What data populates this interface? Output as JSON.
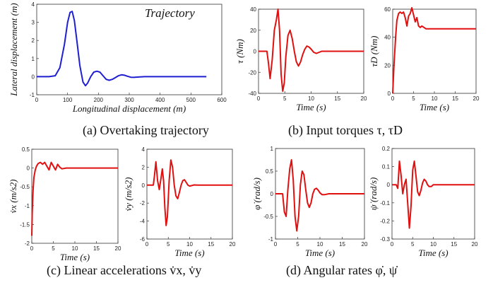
{
  "captions": {
    "a": "(a) Overtaking trajectory",
    "b": "(b) Input torques τ, τD",
    "c": "(c) Linear accelerations v̇x, v̇y",
    "d": "(d) Angular rates φ̇, ψ̇"
  },
  "chart_data": [
    {
      "id": "trajectory",
      "type": "line",
      "title": "Trajectory",
      "xlabel": "Longitudinal displacement (m)",
      "ylabel": "Lateral displacement (m)",
      "xlim": [
        0,
        600
      ],
      "ylim": [
        -1,
        4
      ],
      "xticks": [
        0,
        100,
        200,
        300,
        400,
        500,
        600
      ],
      "yticks": [
        -1,
        0,
        1,
        2,
        3,
        4
      ],
      "color": "#1f1fd1",
      "series": [
        {
          "x": [
            0,
            40,
            60,
            75,
            90,
            100,
            108,
            115,
            122,
            130,
            140,
            150,
            158,
            165,
            175,
            185,
            195,
            205,
            215,
            225,
            235,
            245,
            255,
            265,
            275,
            285,
            295,
            305,
            315,
            330,
            350,
            370,
            400,
            450,
            500,
            550
          ],
          "y": [
            0,
            0,
            0.05,
            0.5,
            1.8,
            3.0,
            3.55,
            3.6,
            3.1,
            2.0,
            0.6,
            -0.3,
            -0.5,
            -0.35,
            0,
            0.25,
            0.3,
            0.25,
            0.05,
            -0.15,
            -0.2,
            -0.15,
            -0.05,
            0.05,
            0.1,
            0.08,
            0.02,
            -0.03,
            -0.04,
            -0.02,
            0,
            0,
            0,
            0,
            0,
            0
          ]
        }
      ]
    },
    {
      "id": "tau",
      "type": "line",
      "xlabel": "Time (s)",
      "ylabel": "τ (Nm)",
      "xlim": [
        0,
        20
      ],
      "ylim": [
        -40,
        40
      ],
      "xticks": [
        0,
        5,
        10,
        15,
        20
      ],
      "yticks": [
        -40,
        -20,
        0,
        20,
        40
      ],
      "color": "#e01010",
      "series": [
        {
          "x": [
            0,
            1.0,
            1.6,
            1.9,
            2.2,
            2.6,
            3.0,
            3.4,
            3.7,
            4.0,
            4.3,
            4.6,
            4.9,
            5.2,
            5.6,
            6.0,
            6.4,
            6.8,
            7.2,
            7.6,
            8.0,
            8.4,
            8.8,
            9.2,
            9.6,
            10.0,
            10.5,
            11.0,
            11.5,
            12.0,
            13.0,
            14.0,
            16.0,
            18.0,
            20.0
          ],
          "y": [
            0,
            0,
            0,
            -12,
            -26,
            -8,
            20,
            30,
            40,
            20,
            -22,
            -38,
            -30,
            -5,
            15,
            20,
            12,
            0,
            -10,
            -14,
            -10,
            -3,
            2,
            5,
            4,
            2,
            -1,
            -2,
            -1,
            0,
            0,
            0,
            0,
            0,
            0
          ]
        }
      ]
    },
    {
      "id": "tauD",
      "type": "line",
      "xlabel": "Time (s)",
      "ylabel": "τD (Nm)",
      "xlim": [
        0,
        20
      ],
      "ylim": [
        0,
        60
      ],
      "xticks": [
        0,
        5,
        10,
        15,
        20
      ],
      "yticks": [
        0,
        20,
        40,
        60
      ],
      "color": "#e01010",
      "series": [
        {
          "x": [
            0,
            0.3,
            0.7,
            1.0,
            1.4,
            1.8,
            2.2,
            2.6,
            3.0,
            3.4,
            3.8,
            4.2,
            4.6,
            5.0,
            5.4,
            5.8,
            6.2,
            6.6,
            7.0,
            7.5,
            8.0,
            9.0,
            10.0,
            12.0,
            15.0,
            20.0
          ],
          "y": [
            0,
            20,
            40,
            52,
            57,
            58,
            57,
            58,
            54,
            48,
            55,
            57,
            61,
            56,
            51,
            54,
            48,
            47,
            48,
            47,
            46,
            46,
            46,
            46,
            46,
            46
          ]
        }
      ]
    },
    {
      "id": "vxdot",
      "type": "line",
      "xlabel": "Time (s)",
      "ylabel": "v̇x (m/s2)",
      "xlim": [
        0,
        20
      ],
      "ylim": [
        -2,
        0.5
      ],
      "xticks": [
        0,
        5,
        10,
        15,
        20
      ],
      "yticks": [
        -2,
        -1.5,
        -1,
        -0.5,
        0,
        0.5
      ],
      "color": "#e01010",
      "series": [
        {
          "x": [
            0,
            0.1,
            0.3,
            0.5,
            0.8,
            1.1,
            1.5,
            2.0,
            2.5,
            3.0,
            3.5,
            4.0,
            4.5,
            5.0,
            5.5,
            6.0,
            6.5,
            7.0,
            8.0,
            9.0,
            10.0,
            12.0,
            15.0,
            20.0
          ],
          "y": [
            -1.8,
            -1.2,
            -0.6,
            -0.25,
            -0.05,
            0.05,
            0.12,
            0.15,
            0.1,
            0.15,
            0.05,
            -0.05,
            0.15,
            0.05,
            -0.05,
            0.1,
            0.02,
            -0.02,
            0,
            0,
            0,
            0,
            0,
            0
          ]
        }
      ]
    },
    {
      "id": "vydot",
      "type": "line",
      "xlabel": "Time (s)",
      "ylabel": "v̇y (m/s2)",
      "xlim": [
        0,
        20
      ],
      "ylim": [
        -6,
        4
      ],
      "xticks": [
        0,
        5,
        10,
        15,
        20
      ],
      "yticks": [
        -6,
        -4,
        -2,
        0,
        2,
        4
      ],
      "color": "#e01010",
      "series": [
        {
          "x": [
            0,
            1.0,
            1.5,
            1.8,
            2.1,
            2.5,
            2.9,
            3.3,
            3.6,
            3.9,
            4.2,
            4.5,
            4.8,
            5.2,
            5.6,
            6.0,
            6.4,
            6.8,
            7.2,
            7.6,
            8.0,
            8.4,
            8.8,
            9.2,
            9.6,
            10.0,
            10.5,
            11.0,
            12.0,
            14.0,
            17.0,
            20.0
          ],
          "y": [
            0,
            0,
            0,
            1.2,
            2.6,
            0.5,
            -0.5,
            0.8,
            1.8,
            0.5,
            -2.5,
            -4.5,
            -3.5,
            0.5,
            2.8,
            2.0,
            0,
            -1.2,
            -1.5,
            -0.8,
            0,
            0.5,
            0.6,
            0.3,
            0,
            -0.1,
            -0.05,
            0.02,
            0,
            0,
            0,
            0
          ]
        }
      ]
    },
    {
      "id": "phidot",
      "type": "line",
      "xlabel": "Time (s)",
      "ylabel": "φ̇ (rad/s)",
      "xlim": [
        0,
        20
      ],
      "ylim": [
        -1,
        1
      ],
      "xticks": [
        0,
        5,
        10,
        15,
        20
      ],
      "yticks": [
        -1,
        -0.5,
        0,
        0.5,
        1
      ],
      "color": "#e01010",
      "series": [
        {
          "x": [
            0,
            1.0,
            1.6,
            2.0,
            2.4,
            2.8,
            3.2,
            3.6,
            4.0,
            4.4,
            4.8,
            5.2,
            5.6,
            6.0,
            6.4,
            6.8,
            7.2,
            7.6,
            8.0,
            8.4,
            8.8,
            9.2,
            9.6,
            10.0,
            10.5,
            11.0,
            12.0,
            14.0,
            17.0,
            20.0
          ],
          "y": [
            0,
            0,
            0,
            -0.4,
            -0.5,
            0.1,
            0.55,
            0.75,
            0.3,
            -0.5,
            -0.82,
            -0.5,
            0.2,
            0.5,
            0.42,
            0.1,
            -0.2,
            -0.3,
            -0.2,
            0,
            0.1,
            0.12,
            0.08,
            0.02,
            -0.02,
            -0.02,
            0,
            0,
            0,
            0
          ]
        }
      ]
    },
    {
      "id": "psidot",
      "type": "line",
      "xlabel": "Time (s)",
      "ylabel": "ψ̇ (rad/s)",
      "xlim": [
        0,
        20
      ],
      "ylim": [
        -0.3,
        0.2
      ],
      "xticks": [
        0,
        5,
        10,
        15,
        20
      ],
      "yticks": [
        -0.3,
        -0.2,
        -0.1,
        0,
        0.1,
        0.2
      ],
      "color": "#e01010",
      "series": [
        {
          "x": [
            0,
            1.0,
            1.4,
            1.8,
            2.2,
            2.6,
            3.0,
            3.4,
            3.8,
            4.2,
            4.6,
            5.0,
            5.4,
            5.8,
            6.2,
            6.6,
            7.0,
            7.4,
            7.8,
            8.2,
            8.6,
            9.0,
            9.5,
            10.0,
            10.5,
            11.0,
            12.0,
            14.0,
            17.0,
            20.0
          ],
          "y": [
            0,
            0,
            -0.02,
            0.13,
            0.05,
            -0.05,
            0.0,
            0.03,
            -0.1,
            -0.24,
            -0.12,
            0.08,
            0.13,
            0.05,
            -0.04,
            -0.06,
            -0.03,
            0.01,
            0.03,
            0.02,
            0.0,
            -0.01,
            -0.01,
            0,
            0,
            0,
            0,
            0,
            0,
            0
          ]
        }
      ]
    }
  ]
}
